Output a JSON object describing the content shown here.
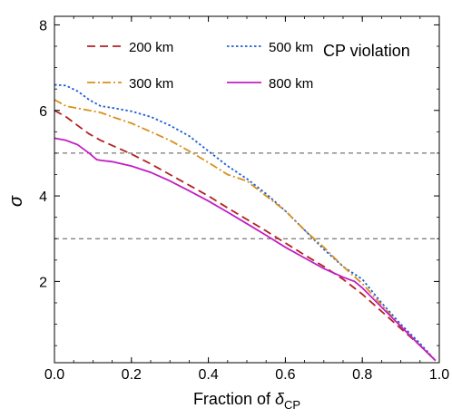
{
  "chart_data": {
    "type": "line",
    "title": "",
    "annotation": "CP violation",
    "xlabel_prefix": "Fraction of ",
    "xlabel_symbol": "δ",
    "xlabel_sub": "CP",
    "ylabel": "σ",
    "xlim": [
      0.0,
      1.0
    ],
    "ylim": [
      0.1,
      8.2
    ],
    "xticks": [
      "0.0",
      "0.2",
      "0.4",
      "0.6",
      "0.8",
      "1.0"
    ],
    "yticks": [
      "2",
      "4",
      "6",
      "8"
    ],
    "grid": false,
    "legend_position": "top",
    "reference_lines": [
      5,
      3
    ],
    "series": [
      {
        "name": "200 km",
        "color": "#b22222",
        "dash": "long-dash",
        "x": [
          0.0,
          0.03,
          0.06,
          0.09,
          0.12,
          0.15,
          0.2,
          0.25,
          0.3,
          0.35,
          0.4,
          0.45,
          0.5,
          0.55,
          0.6,
          0.65,
          0.7,
          0.75,
          0.8,
          0.85,
          0.9,
          0.95,
          0.99
        ],
        "y": [
          6.0,
          5.85,
          5.65,
          5.45,
          5.3,
          5.18,
          4.98,
          4.75,
          4.5,
          4.25,
          4.0,
          3.72,
          3.45,
          3.18,
          2.9,
          2.62,
          2.35,
          2.05,
          1.7,
          1.3,
          0.9,
          0.5,
          0.15
        ]
      },
      {
        "name": "500 km",
        "color": "#1f5fd6",
        "dash": "dotted",
        "x": [
          0.0,
          0.03,
          0.06,
          0.09,
          0.12,
          0.15,
          0.2,
          0.25,
          0.3,
          0.35,
          0.4,
          0.45,
          0.5,
          0.55,
          0.6,
          0.65,
          0.7,
          0.75,
          0.8,
          0.85,
          0.9,
          0.95,
          0.99
        ],
        "y": [
          6.6,
          6.58,
          6.45,
          6.25,
          6.1,
          6.06,
          5.98,
          5.85,
          5.65,
          5.4,
          5.05,
          4.7,
          4.4,
          4.05,
          3.65,
          3.2,
          2.75,
          2.35,
          2.05,
          1.5,
          1.0,
          0.55,
          0.15
        ]
      },
      {
        "name": "300 km",
        "color": "#d9901a",
        "dash": "dash-dot",
        "x": [
          0.0,
          0.03,
          0.06,
          0.09,
          0.12,
          0.15,
          0.2,
          0.25,
          0.3,
          0.35,
          0.4,
          0.45,
          0.5,
          0.55,
          0.6,
          0.65,
          0.7,
          0.75,
          0.8,
          0.85,
          0.9,
          0.95,
          0.99
        ],
        "y": [
          6.25,
          6.1,
          6.05,
          6.0,
          5.95,
          5.85,
          5.7,
          5.5,
          5.3,
          5.05,
          4.78,
          4.5,
          4.35,
          4.0,
          3.65,
          3.2,
          2.8,
          2.35,
          1.95,
          1.45,
          0.95,
          0.5,
          0.15
        ]
      },
      {
        "name": "800 km",
        "color": "#c21fc2",
        "dash": "solid",
        "x": [
          0.0,
          0.03,
          0.06,
          0.09,
          0.11,
          0.12,
          0.15,
          0.2,
          0.25,
          0.3,
          0.35,
          0.4,
          0.45,
          0.5,
          0.55,
          0.6,
          0.65,
          0.7,
          0.75,
          0.78,
          0.8,
          0.85,
          0.9,
          0.95,
          0.99
        ],
        "y": [
          5.35,
          5.3,
          5.2,
          5.0,
          4.85,
          4.83,
          4.8,
          4.7,
          4.55,
          4.35,
          4.12,
          3.88,
          3.62,
          3.35,
          3.08,
          2.8,
          2.55,
          2.3,
          2.1,
          2.0,
          1.85,
          1.4,
          0.95,
          0.5,
          0.15
        ]
      }
    ]
  }
}
